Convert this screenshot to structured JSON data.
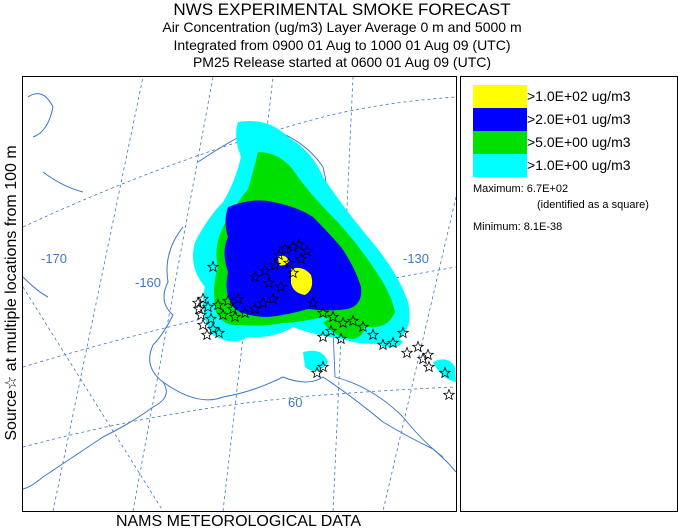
{
  "header": {
    "title": "NWS EXPERIMENTAL SMOKE FORECAST",
    "line2": "Air Concentration (ug/m3) Layer Average    0 m and  5000 m",
    "line3": "Integrated from 0900 01 Aug to 1000 01 Aug 09 (UTC)",
    "line4": "PM25 Release started at 0600 01 Aug 09 (UTC)"
  },
  "side_label": "Source☆ at multiple locations  from   100 m",
  "footer": "NAMS METEOROLOGICAL DATA",
  "legend": {
    "items": [
      {
        "label": ">1.0E+02 ug/m3",
        "color": "#ffff00"
      },
      {
        "label": ">2.0E+01 ug/m3",
        "color": "#0000ff"
      },
      {
        "label": ">5.0E+00 ug/m3",
        "color": "#00e000"
      },
      {
        "label": ">1.0E+00 ug/m3",
        "color": "#00ffff"
      }
    ],
    "maximum": "Maximum: 6.7E+02",
    "maximum_note": "(identified as a square)",
    "minimum": "Minimum: 8.1E-38"
  },
  "map": {
    "grid_labels": {
      "lon_170": "-170",
      "lon_160": "-160",
      "lon_130": "-130",
      "lat_60": "60"
    },
    "colors": {
      "grid": "#3a78c9",
      "coast": "#3a78c9",
      "source": "#000000"
    }
  }
}
